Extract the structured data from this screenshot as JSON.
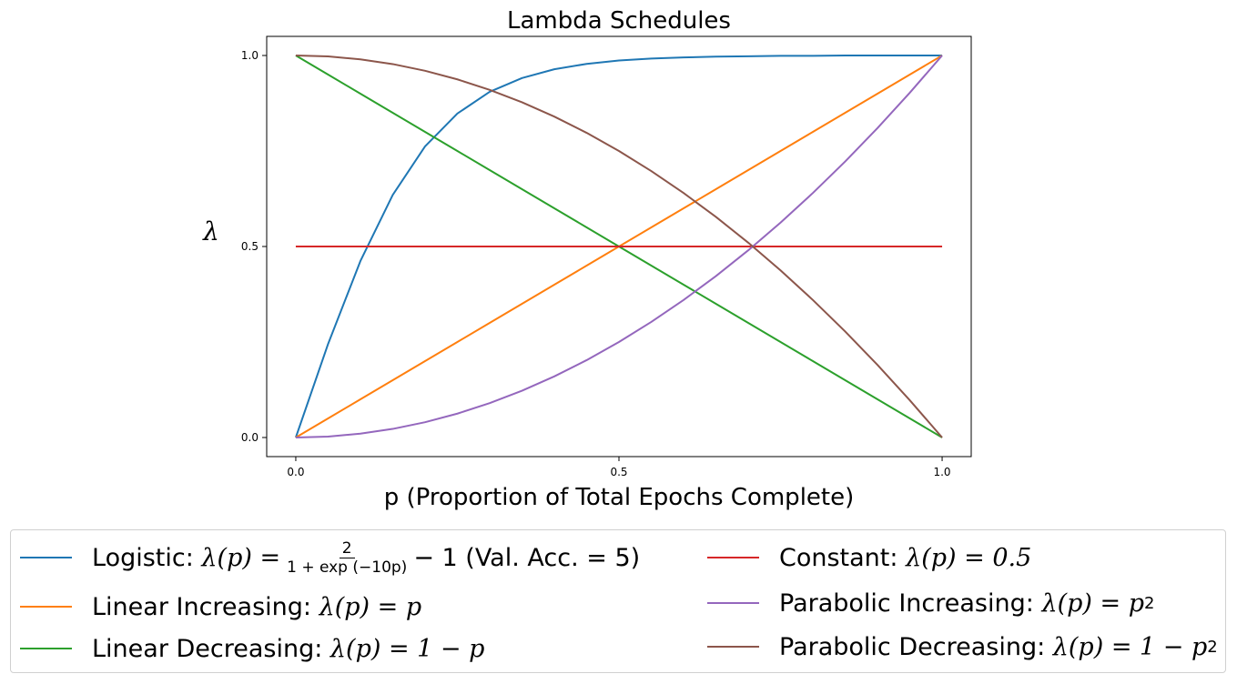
{
  "chart_data": {
    "type": "line",
    "title": "Lambda Schedules",
    "xlabel": "p (Proportion of Total Epochs Complete)",
    "ylabel": "λ",
    "xlim": [
      -0.045,
      1.045
    ],
    "ylim": [
      -0.05,
      1.05
    ],
    "xticks": [
      "0.0",
      "0.5",
      "1.0"
    ],
    "yticks": [
      "0.0",
      "0.5",
      "1.0"
    ],
    "grid": false,
    "legend_position": "below",
    "x": [
      0.0,
      0.05,
      0.1,
      0.15,
      0.2,
      0.25,
      0.3,
      0.35,
      0.4,
      0.45,
      0.5,
      0.55,
      0.6,
      0.65,
      0.7,
      0.75,
      0.8,
      0.85,
      0.9,
      0.95,
      1.0
    ],
    "series": [
      {
        "name": "Logistic",
        "color": "#1f77b4",
        "values": [
          0.0,
          0.245,
          0.462,
          0.635,
          0.762,
          0.848,
          0.905,
          0.941,
          0.964,
          0.978,
          0.987,
          0.992,
          0.995,
          0.997,
          0.998,
          0.999,
          0.999,
          1.0,
          1.0,
          1.0,
          1.0
        ]
      },
      {
        "name": "Linear Increasing",
        "color": "#ff7f0e",
        "values": [
          0.0,
          0.05,
          0.1,
          0.15,
          0.2,
          0.25,
          0.3,
          0.35,
          0.4,
          0.45,
          0.5,
          0.55,
          0.6,
          0.65,
          0.7,
          0.75,
          0.8,
          0.85,
          0.9,
          0.95,
          1.0
        ]
      },
      {
        "name": "Linear Decreasing",
        "color": "#2ca02c",
        "values": [
          1.0,
          0.95,
          0.9,
          0.85,
          0.8,
          0.75,
          0.7,
          0.65,
          0.6,
          0.55,
          0.5,
          0.45,
          0.4,
          0.35,
          0.3,
          0.25,
          0.2,
          0.15,
          0.1,
          0.05,
          0.0
        ]
      },
      {
        "name": "Constant",
        "color": "#d62728",
        "values": [
          0.5,
          0.5,
          0.5,
          0.5,
          0.5,
          0.5,
          0.5,
          0.5,
          0.5,
          0.5,
          0.5,
          0.5,
          0.5,
          0.5,
          0.5,
          0.5,
          0.5,
          0.5,
          0.5,
          0.5,
          0.5
        ]
      },
      {
        "name": "Parabolic Increasing",
        "color": "#9467bd",
        "values": [
          0.0,
          0.0025,
          0.01,
          0.0225,
          0.04,
          0.0625,
          0.09,
          0.1225,
          0.16,
          0.2025,
          0.25,
          0.3025,
          0.36,
          0.4225,
          0.49,
          0.5625,
          0.64,
          0.7225,
          0.81,
          0.9025,
          1.0
        ]
      },
      {
        "name": "Parabolic Decreasing",
        "color": "#8c564b",
        "values": [
          1.0,
          0.9975,
          0.99,
          0.9775,
          0.96,
          0.9375,
          0.91,
          0.8775,
          0.84,
          0.7975,
          0.75,
          0.6975,
          0.64,
          0.5775,
          0.51,
          0.4375,
          0.36,
          0.2775,
          0.19,
          0.0975,
          0.0
        ]
      }
    ]
  },
  "legend": {
    "logistic": {
      "label": "Logistic:",
      "lhs": "λ(p) =",
      "num": "2",
      "den": "1 + exp (−10p)",
      "tail": "− 1 (Val. Acc. = 5)"
    },
    "linear_increasing": {
      "label": "Linear Increasing:",
      "formula": "λ(p) = p"
    },
    "linear_decreasing": {
      "label": "Linear Decreasing:",
      "formula": "λ(p) = 1 − p"
    },
    "constant": {
      "label": "Constant:",
      "formula": "λ(p) = 0.5"
    },
    "parabolic_increasing": {
      "label": "Parabolic Increasing:",
      "formula": "λ(p) = p",
      "sup": "2"
    },
    "parabolic_decreasing": {
      "label": "Parabolic Decreasing:",
      "formula": "λ(p) = 1 − p",
      "sup": "2"
    }
  }
}
